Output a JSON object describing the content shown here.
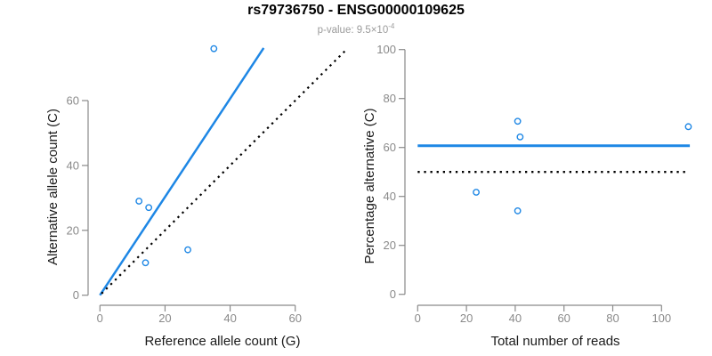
{
  "figure": {
    "title": "rs79736750 - ENSG00000109625",
    "subtitle_prefix": "p-value: 9.5×10",
    "subtitle_exponent": "-4"
  },
  "colors": {
    "accent_blue": "#1e87e5",
    "axis_gray": "#8a8a8a",
    "tick_label_gray": "#8a8a8a",
    "axis_title_black": "#1a1a1a",
    "line_black": "#000000"
  },
  "chart_data": [
    {
      "type": "scatter",
      "name": "allele-count-scatter",
      "xlabel": "Reference allele count (G)",
      "ylabel": "Alternative allele count (C)",
      "xticks": [
        0,
        20,
        40,
        60
      ],
      "yticks": [
        0,
        20,
        40,
        60
      ],
      "xlim": [
        0,
        60
      ],
      "ylim": [
        0,
        60
      ],
      "grid": false,
      "points": [
        [
          12,
          29
        ],
        [
          15,
          27
        ],
        [
          27,
          14
        ],
        [
          14,
          10
        ],
        [
          35,
          76
        ]
      ],
      "lines": [
        {
          "name": "fit-line",
          "style": "solid",
          "color_key": "accent_blue",
          "x1": 0,
          "y1": 0,
          "x2": 50.3,
          "y2": 76.2,
          "width": 2.5
        },
        {
          "name": "identity-line",
          "style": "dotted",
          "color_key": "line_black",
          "x1": 0.5,
          "y1": 0.5,
          "x2": 75.5,
          "y2": 75.5,
          "width": 2.2
        }
      ]
    },
    {
      "type": "scatter",
      "name": "percentage-vs-reads-scatter",
      "xlabel": "Total number of reads",
      "ylabel": "Percentage alternative (C)",
      "xticks": [
        0,
        20,
        40,
        60,
        80,
        100
      ],
      "yticks": [
        0,
        20,
        40,
        60,
        80,
        100
      ],
      "xlim": [
        0,
        100
      ],
      "ylim": [
        0,
        100
      ],
      "grid": false,
      "points": [
        [
          24,
          41.7
        ],
        [
          41,
          70.7
        ],
        [
          42,
          64.3
        ],
        [
          41,
          34.1
        ],
        [
          111,
          68.5
        ]
      ],
      "lines": [
        {
          "name": "mean-percentage-line",
          "style": "solid",
          "color_key": "accent_blue",
          "x1": 0,
          "y1": 60.7,
          "x2": 111.6,
          "y2": 60.7,
          "width": 3
        },
        {
          "name": "fifty-percent-reference-line",
          "style": "dotted",
          "color_key": "line_black",
          "x1": 0,
          "y1": 50,
          "x2": 110,
          "y2": 50,
          "width": 2.3
        }
      ]
    }
  ]
}
